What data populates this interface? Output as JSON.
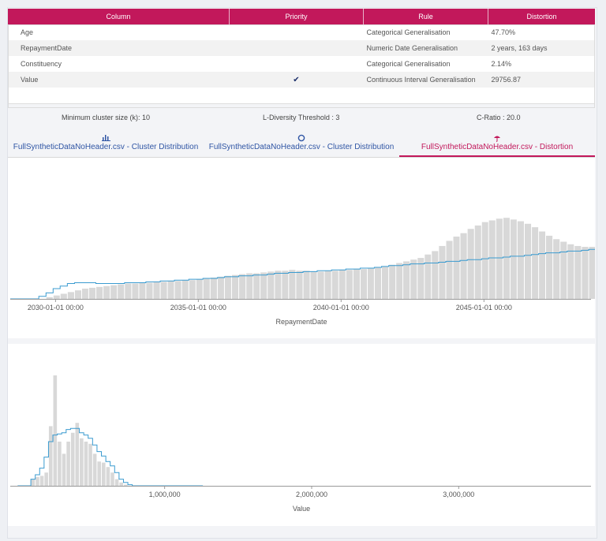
{
  "table": {
    "headers": [
      "Column",
      "Priority",
      "Rule",
      "Distortion"
    ],
    "rows": [
      {
        "column": "Age",
        "priority": "",
        "rule": "Categorical Generalisation",
        "distortion": "47.70%"
      },
      {
        "column": "RepaymentDate",
        "priority": "",
        "rule": "Numeric Date Generalisation",
        "distortion": "2 years, 163 days"
      },
      {
        "column": "Constituency",
        "priority": "",
        "rule": "Categorical Generalisation",
        "distortion": "2.14%"
      },
      {
        "column": "Value",
        "priority": "✔",
        "rule": "Continuous Interval Generalisation",
        "distortion": "29756.87"
      }
    ]
  },
  "stats": {
    "min_cluster": "Minimum cluster size (k): 10",
    "l_diversity": "L-Diversity Threshold : 3",
    "c_ratio": "C-Ratio : 20.0"
  },
  "tabs": [
    {
      "label": "FullSyntheticDataNoHeader.csv - Cluster Distribution",
      "icon": "bar-chart-icon",
      "active": false
    },
    {
      "label": "FullSyntheticDataNoHeader.csv - Cluster Distribution",
      "icon": "circle-icon",
      "active": false
    },
    {
      "label": "FullSyntheticDataNoHeader.csv - Distortion",
      "icon": "umbrella-icon",
      "active": true
    }
  ],
  "colors": {
    "accent": "#c2185b",
    "link": "#2f55a4",
    "bar": "#d8d8d8",
    "line": "#3a9bd0"
  },
  "chart_data": [
    {
      "type": "bar",
      "xlabel": "RepaymentDate",
      "ylabel": "",
      "x_start": "2028-06-01",
      "x_end": "2048-10-01",
      "x_ticks": [
        "2030-01-01 00:00",
        "2035-01-01 00:00",
        "2040-01-01 00:00",
        "2045-01-01 00:00"
      ],
      "bin_months": 3,
      "bar_values": [
        0,
        0,
        0,
        0,
        0,
        2,
        4,
        6,
        8,
        10,
        12,
        13,
        14,
        15,
        16,
        17,
        18,
        18,
        19,
        19,
        20,
        20,
        21,
        21,
        22,
        22,
        23,
        24,
        25,
        26,
        27,
        28,
        29,
        30,
        30,
        31,
        32,
        33,
        33,
        34,
        33,
        33,
        32,
        32,
        33,
        33,
        34,
        34,
        35,
        35,
        36,
        37,
        38,
        40,
        42,
        44,
        46,
        48,
        52,
        56,
        62,
        68,
        73,
        77,
        82,
        86,
        90,
        92,
        94,
        95,
        93,
        91,
        88,
        84,
        79,
        74,
        70,
        67,
        64,
        62,
        61,
        61,
        62,
        63,
        65,
        68,
        71,
        74,
        76,
        79,
        82,
        85,
        88,
        92,
        98,
        106,
        114,
        110,
        100,
        60,
        38,
        15,
        5
      ],
      "line_values": [
        0,
        0,
        0,
        0,
        3,
        7,
        12,
        15,
        18,
        19,
        19,
        19,
        18,
        18,
        18,
        18,
        19,
        19,
        19,
        20,
        20,
        21,
        21,
        22,
        22,
        23,
        23,
        24,
        24,
        25,
        26,
        26,
        27,
        27,
        28,
        28,
        29,
        30,
        30,
        31,
        31,
        32,
        32,
        33,
        33,
        34,
        34,
        35,
        35,
        36,
        36,
        37,
        38,
        39,
        39,
        40,
        41,
        41,
        42,
        42,
        43,
        44,
        44,
        45,
        46,
        46,
        47,
        48,
        48,
        49,
        50,
        50,
        51,
        52,
        53,
        54,
        54,
        55,
        56,
        56,
        57,
        58,
        59,
        60,
        61,
        62,
        63,
        64,
        65,
        68,
        72,
        76,
        82,
        90,
        104,
        118,
        132,
        134,
        125,
        104,
        72,
        36,
        8
      ]
    },
    {
      "type": "bar",
      "xlabel": "Value",
      "ylabel": "",
      "x_ticks": [
        "1,000,000",
        "2,000,000",
        "3,000,000"
      ],
      "x_tick_values": [
        1000000,
        2000000,
        3000000
      ],
      "x_range": [
        -50000,
        3900000
      ],
      "bin_width": 30000,
      "x_start": 0,
      "bar_values": [
        0,
        0,
        0,
        6,
        8,
        9,
        12,
        54,
        100,
        40,
        29,
        40,
        48,
        57,
        43,
        40,
        38,
        29,
        22,
        21,
        17,
        12,
        6,
        3,
        1,
        0,
        0,
        0,
        0,
        0,
        0,
        0,
        0,
        0,
        0,
        0,
        0,
        0,
        0,
        0,
        0,
        0
      ],
      "line_values": [
        0,
        0,
        0,
        6,
        10,
        16,
        26,
        40,
        46,
        47,
        48,
        51,
        52,
        52,
        48,
        46,
        43,
        37,
        31,
        27,
        22,
        18,
        12,
        6,
        3,
        1,
        0,
        0,
        0,
        0,
        0,
        0,
        0,
        0,
        0,
        0,
        0,
        0,
        0,
        0,
        0,
        0
      ]
    }
  ]
}
